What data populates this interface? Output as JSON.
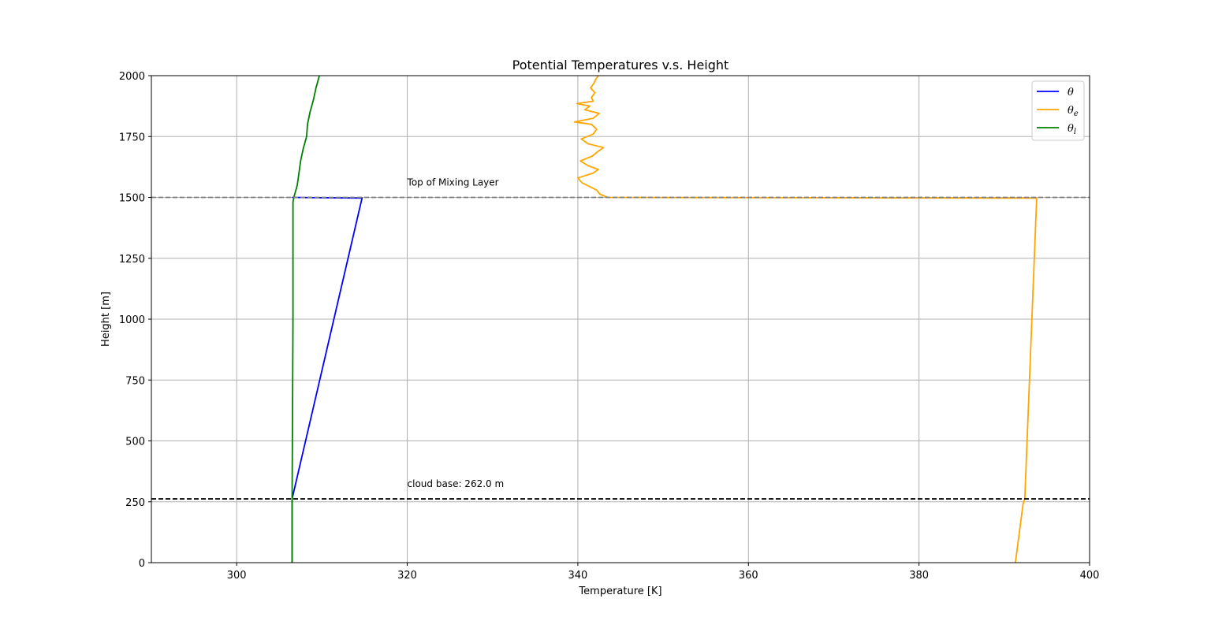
{
  "chart_data": {
    "type": "line",
    "title": "Potential Temperatures v.s. Height",
    "xlabel": "Temperature [K]",
    "ylabel": "Height [m]",
    "xlim": [
      290,
      400
    ],
    "ylim": [
      0,
      2000
    ],
    "xticks": [
      300,
      320,
      340,
      360,
      380,
      400
    ],
    "yticks": [
      0,
      250,
      500,
      750,
      1000,
      1250,
      1500,
      1750,
      2000
    ],
    "grid": true,
    "legend_position": "top-right",
    "series": [
      {
        "name": "θ",
        "name_base": "θ",
        "name_sub": "",
        "color": "#0000ff",
        "points": [
          [
            306.5,
            0
          ],
          [
            306.5,
            262
          ],
          [
            314.7,
            1497
          ],
          [
            306.5,
            1500
          ]
        ]
      },
      {
        "name": "θe",
        "name_base": "θ",
        "name_sub": "e",
        "color": "#ffa500",
        "points": [
          [
            391.3,
            0
          ],
          [
            392.2,
            240
          ],
          [
            392.4,
            262
          ],
          [
            393.8,
            1497
          ],
          [
            343.5,
            1500
          ],
          [
            342.6,
            1513
          ],
          [
            342.2,
            1530
          ],
          [
            340.5,
            1560
          ],
          [
            340.0,
            1580
          ],
          [
            341.8,
            1600
          ],
          [
            342.4,
            1615
          ],
          [
            341.2,
            1630
          ],
          [
            340.3,
            1650
          ],
          [
            341.7,
            1670
          ],
          [
            342.4,
            1690
          ],
          [
            343.0,
            1705
          ],
          [
            341.2,
            1720
          ],
          [
            340.4,
            1740
          ],
          [
            341.8,
            1760
          ],
          [
            342.2,
            1780
          ],
          [
            341.6,
            1800
          ],
          [
            339.6,
            1810
          ],
          [
            341.8,
            1825
          ],
          [
            342.5,
            1845
          ],
          [
            340.8,
            1860
          ],
          [
            341.4,
            1875
          ],
          [
            339.9,
            1885
          ],
          [
            341.8,
            1895
          ],
          [
            341.6,
            1910
          ],
          [
            342.0,
            1930
          ],
          [
            341.5,
            1950
          ],
          [
            341.9,
            1970
          ],
          [
            342.1,
            1985
          ],
          [
            342.4,
            2000
          ]
        ]
      },
      {
        "name": "θl",
        "name_base": "θ",
        "name_sub": "l",
        "color": "#008000",
        "points": [
          [
            306.5,
            0
          ],
          [
            306.5,
            262
          ],
          [
            306.6,
            1000
          ],
          [
            306.6,
            1480
          ],
          [
            306.7,
            1500
          ],
          [
            307.1,
            1550
          ],
          [
            307.3,
            1600
          ],
          [
            307.5,
            1650
          ],
          [
            307.8,
            1700
          ],
          [
            308.2,
            1750
          ],
          [
            308.3,
            1800
          ],
          [
            308.6,
            1850
          ],
          [
            309.0,
            1900
          ],
          [
            309.3,
            1950
          ],
          [
            309.7,
            2000
          ]
        ]
      }
    ],
    "hlines": [
      {
        "y": 1500,
        "color": "#808080",
        "style": "dashed",
        "label": "Top of Mixing Layer",
        "label_x": 320
      },
      {
        "y": 262,
        "color": "#000000",
        "style": "dashed",
        "label": "cloud base: 262.0 m",
        "label_x": 320
      }
    ]
  }
}
